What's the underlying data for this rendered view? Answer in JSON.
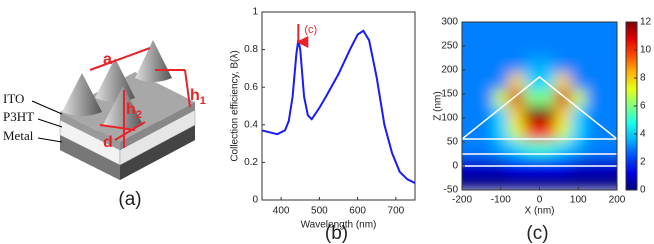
{
  "diagram": {
    "layers": [
      "ITO",
      "P3HT",
      "Metal"
    ],
    "dims": {
      "a": "a",
      "d": "d",
      "h1": {
        "base": "h",
        "sub": "1"
      },
      "h2": {
        "base": "h",
        "sub": "2"
      }
    },
    "panel_label": "(a)"
  },
  "chart_data": [
    {
      "type": "line",
      "panel_label": "(b)",
      "xlabel": "Wavelength (nm)",
      "ylabel": "Collection efficiency, B(λ)",
      "x": [
        350,
        370,
        390,
        410,
        420,
        430,
        440,
        445,
        450,
        460,
        470,
        480,
        500,
        520,
        550,
        580,
        600,
        615,
        630,
        650,
        670,
        690,
        710,
        730,
        750
      ],
      "values": [
        0.37,
        0.36,
        0.35,
        0.37,
        0.42,
        0.55,
        0.78,
        0.85,
        0.8,
        0.55,
        0.45,
        0.43,
        0.49,
        0.56,
        0.67,
        0.8,
        0.88,
        0.9,
        0.85,
        0.65,
        0.4,
        0.25,
        0.15,
        0.11,
        0.09
      ],
      "color": "#1a1aff",
      "xlim": [
        350,
        750
      ],
      "xticks": [
        400,
        500,
        600,
        700
      ],
      "ylim": [
        0,
        1
      ],
      "yticks": [
        0,
        0.2,
        0.4,
        0.6,
        0.8,
        1
      ],
      "annotation": {
        "text": "(c)",
        "x": 445,
        "color": "#e8232a"
      }
    },
    {
      "type": "heatmap",
      "panel_label": "(c)",
      "xlabel": "X (nm)",
      "ylabel": "Z (nm)",
      "colormap": "jet",
      "x": [
        -180,
        -140,
        -100,
        -60,
        -20,
        20,
        60,
        100,
        140,
        180
      ],
      "y": [
        -32.5,
        2.5,
        37.5,
        72.5,
        107.5,
        142.5,
        177.5,
        212.5,
        247.5,
        282.5
      ],
      "z": [
        [
          0,
          0,
          0,
          0,
          0,
          0,
          0,
          0,
          0,
          0
        ],
        [
          1,
          1,
          1,
          1.5,
          1.5,
          1.5,
          1.5,
          1,
          1,
          1
        ],
        [
          3,
          3,
          3.5,
          4,
          5,
          5,
          4,
          3.5,
          3,
          3
        ],
        [
          3,
          3,
          4,
          7,
          10,
          10,
          7,
          4,
          3,
          3
        ],
        [
          3,
          3,
          4,
          8,
          12,
          12,
          8,
          4,
          3,
          3
        ],
        [
          3,
          3,
          7,
          11,
          6,
          6,
          11,
          7,
          3,
          3
        ],
        [
          3,
          3,
          3,
          8,
          4,
          4,
          8,
          3,
          3,
          3
        ],
        [
          3,
          3,
          3,
          3,
          3.5,
          3.5,
          3,
          3,
          3,
          3
        ],
        [
          3,
          3,
          3,
          3,
          3,
          3,
          3,
          3,
          3,
          3
        ],
        [
          3,
          3,
          3,
          3,
          3,
          3,
          3,
          3,
          3,
          3
        ]
      ],
      "xlim": [
        -200,
        200
      ],
      "xticks": [
        -200,
        -100,
        0,
        100,
        200
      ],
      "ylim": [
        -50,
        300
      ],
      "yticks": [
        -50,
        0,
        50,
        100,
        150,
        200,
        250,
        300
      ],
      "clim": [
        0,
        12
      ],
      "cticks": [
        0,
        2,
        4,
        6,
        8,
        10,
        12
      ]
    }
  ]
}
